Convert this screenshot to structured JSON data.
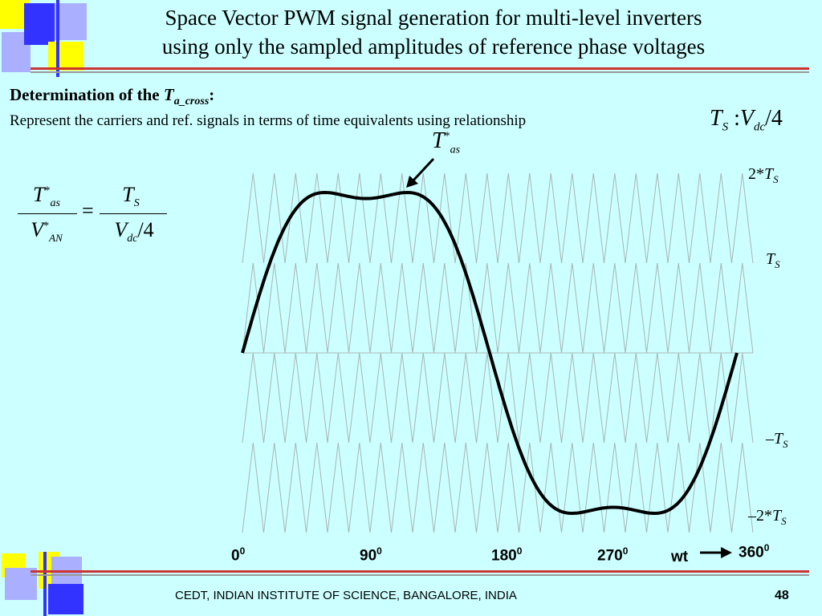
{
  "colors": {
    "background": "#ccffff",
    "deco_blue": "#3333ff",
    "deco_yellow": "#ffff00",
    "deco_lavender": "#aab0ff",
    "rule_red": "#cc3333",
    "rule_gray": "#999999"
  },
  "title": {
    "line1": "Space Vector PWM signal generation for multi-level inverters",
    "line2": "using only the sampled amplitudes of reference phase voltages"
  },
  "heading": {
    "prefix": "Determination of the ",
    "var": "T",
    "sub": "a_cross",
    "suffix": ":"
  },
  "subtext": "Represent the carriers and ref. signals in terms of time equivalents using relationship",
  "relationship": {
    "lhs": "T",
    "lhs_sub": "S",
    "sep": " :",
    "rhs": "V",
    "rhs_sub": "dc",
    "tail": "/4"
  },
  "equation": {
    "num_left": "T",
    "num_left_sup": "*",
    "num_left_sub": "as",
    "den_left": "V",
    "den_left_sup": "*",
    "den_left_sub": "AN",
    "equals": "=",
    "num_right": "T",
    "num_right_sub": "S",
    "den_right": "V",
    "den_right_sub": "dc",
    "den_right_tail": "/4"
  },
  "annotation": {
    "var": "T",
    "sup": "*",
    "sub": "as"
  },
  "levels": {
    "l1": {
      "prefix": "2*",
      "var": "T",
      "sub": "S"
    },
    "l2": {
      "prefix": "",
      "var": "T",
      "sub": "S"
    },
    "l3": {
      "prefix": "–",
      "var": "T",
      "sub": "S"
    },
    "l4": {
      "prefix": "–2*",
      "var": "T",
      "sub": "S"
    }
  },
  "xaxis": {
    "t0": "0",
    "t0_sup": "0",
    "t90": "90",
    "t90_sup": "0",
    "t180": "180",
    "t180_sup": "0",
    "t270": "270",
    "t270_sup": "0",
    "wt": "wt",
    "t360": "360",
    "t360_sup": "0"
  },
  "chart_data": {
    "type": "line",
    "carrier_count_per_band": 24,
    "bands": 4,
    "reference": "third-harmonic-injected sine, flat-topped with dip at 90 and 270 degrees"
  },
  "footer": {
    "text": "CEDT, INDIAN INSTITUTE OF SCIENCE, BANGALORE, INDIA",
    "page": "48"
  }
}
